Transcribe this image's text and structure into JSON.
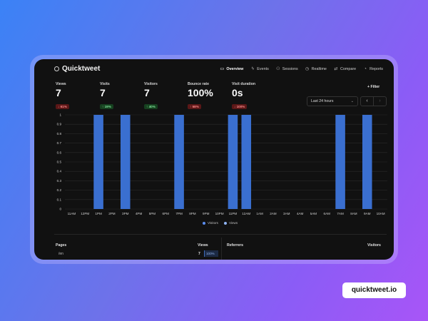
{
  "app": {
    "name": "Quicktweet"
  },
  "nav": [
    {
      "label": "Overview",
      "icon": "monitor-icon",
      "active": true
    },
    {
      "label": "Events",
      "icon": "bolt-icon",
      "active": false
    },
    {
      "label": "Sessions",
      "icon": "user-icon",
      "active": false
    },
    {
      "label": "Realtime",
      "icon": "clock-icon",
      "active": false
    },
    {
      "label": "Compare",
      "icon": "arrows-icon",
      "active": false
    },
    {
      "label": "Reports",
      "icon": "report-icon",
      "active": false
    }
  ],
  "metrics": [
    {
      "label": "Views",
      "value": "7",
      "change": "61%",
      "direction": "down"
    },
    {
      "label": "Visits",
      "value": "7",
      "change": "19%",
      "direction": "up"
    },
    {
      "label": "Visitors",
      "value": "7",
      "change": "40%",
      "direction": "up"
    },
    {
      "label": "Bounce rate",
      "value": "100%",
      "change": "58%",
      "direction": "up-bad"
    },
    {
      "label": "Visit duration",
      "value": "0s",
      "change": "100%",
      "direction": "down"
    }
  ],
  "toolbar": {
    "filter_label": "Filter",
    "range_label": "Last 24 hours",
    "prev": "‹",
    "next": "›"
  },
  "chart_data": {
    "type": "bar",
    "categories": [
      "11AM",
      "12PM",
      "1PM",
      "2PM",
      "3PM",
      "4PM",
      "5PM",
      "6PM",
      "7PM",
      "8PM",
      "9PM",
      "10PM",
      "11PM",
      "12AM",
      "1AM",
      "2AM",
      "3AM",
      "4AM",
      "5AM",
      "6AM",
      "7AM",
      "8AM",
      "9AM",
      "10AM"
    ],
    "series": [
      {
        "name": "Visitors",
        "values": [
          0,
          0,
          1,
          0,
          1,
          0,
          0,
          0,
          1,
          0,
          0,
          0,
          1,
          1,
          0,
          0,
          0,
          0,
          0,
          0,
          1,
          0,
          1,
          0
        ]
      },
      {
        "name": "Views",
        "values": [
          0,
          0,
          1,
          0,
          1,
          0,
          0,
          0,
          1,
          0,
          0,
          0,
          1,
          1,
          0,
          0,
          0,
          0,
          0,
          0,
          1,
          0,
          1,
          0
        ]
      }
    ],
    "yticks": [
      "0",
      "0.1",
      "0.2",
      "0.3",
      "0.4",
      "0.5",
      "0.6",
      "0.7",
      "0.8",
      "0.9",
      "1"
    ],
    "ylim": [
      0,
      1
    ],
    "grid": true,
    "legend_position": "bottom",
    "colors": {
      "bar": "#3a6fd0",
      "visitors": "#5b8def",
      "views": "#8fb4f5"
    }
  },
  "pages_panel": {
    "title": "Pages",
    "views_header": "Views",
    "rows": [
      {
        "path": "/en",
        "views": "7",
        "percent": "100%"
      }
    ]
  },
  "referrers_panel": {
    "title": "Referrers",
    "visitors_header": "Visitors"
  },
  "footer_pill": {
    "label": "quicktweet.io"
  }
}
